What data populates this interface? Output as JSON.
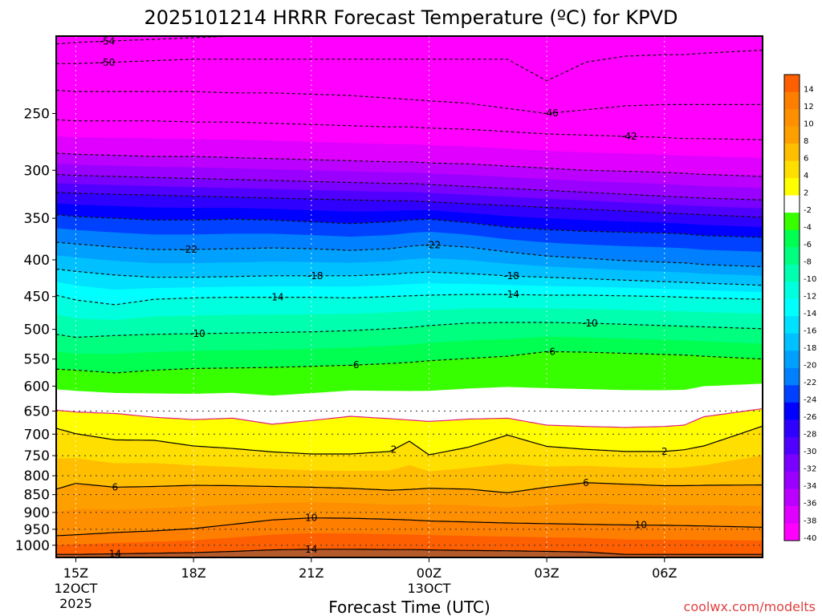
{
  "chart_data": {
    "type": "heatmap",
    "title": "2025101214 HRRR Forecast Temperature (ºC) for KPVD",
    "xlabel": "Forecast Time (UTC)",
    "ylabel": "",
    "credit": "coolwx.com/modelts",
    "y_scale": "log-pressure",
    "ylim": [
      1040,
      195
    ],
    "xlim": [
      14.5,
      32.5
    ],
    "x_ticks": [
      {
        "x": 15,
        "lines": [
          "15Z",
          "12OCT",
          "2025"
        ]
      },
      {
        "x": 18,
        "lines": [
          "18Z"
        ]
      },
      {
        "x": 21,
        "lines": [
          "21Z"
        ]
      },
      {
        "x": 24,
        "lines": [
          "00Z",
          "13OCT"
        ]
      },
      {
        "x": 27,
        "lines": [
          "03Z"
        ]
      },
      {
        "x": 30,
        "lines": [
          "06Z"
        ]
      }
    ],
    "y_ticks": [
      {
        "p": 250,
        "label": "250"
      },
      {
        "p": 300,
        "label": "300"
      },
      {
        "p": 350,
        "label": "350"
      },
      {
        "p": 400,
        "label": "400"
      },
      {
        "p": 450,
        "label": "450"
      },
      {
        "p": 500,
        "label": "500"
      },
      {
        "p": 550,
        "label": "550"
      },
      {
        "p": 600,
        "label": "600"
      },
      {
        "p": 650,
        "label": "650"
      },
      {
        "p": 700,
        "label": "700"
      },
      {
        "p": 750,
        "label": "750"
      },
      {
        "p": 800,
        "label": "800"
      },
      {
        "p": 850,
        "label": "850"
      },
      {
        "p": 900,
        "label": "900"
      },
      {
        "p": 950,
        "label": "950"
      },
      {
        "p": 1000,
        "label": "1000"
      }
    ],
    "grid": {
      "vertical": true,
      "horizontal_dotted": true
    },
    "x_samples": [
      14.5,
      15,
      16,
      17,
      18,
      19,
      20,
      21,
      22,
      23,
      23.5,
      24,
      25,
      26,
      27,
      28,
      29,
      30,
      30.5,
      31,
      32.5
    ],
    "isotherms": [
      {
        "temp": -54,
        "style": "dashed",
        "labels": [
          {
            "text": "-54",
            "x": 15.8
          }
        ],
        "p": [
          200,
          199,
          198,
          197,
          196,
          195,
          194,
          193,
          193,
          193,
          193,
          193,
          193,
          193,
          193,
          193,
          193,
          193,
          193,
          193,
          193
        ]
      },
      {
        "temp": -50,
        "style": "dashed",
        "labels": [
          {
            "text": "-50",
            "x": 15.8
          }
        ],
        "p": [
          213,
          213,
          212,
          211,
          210,
          210,
          210,
          210,
          210,
          210,
          210,
          210,
          210,
          210,
          225,
          212,
          208,
          207,
          207,
          206,
          204
        ]
      },
      {
        "temp": -46,
        "style": "dashed",
        "labels": [
          {
            "text": "-46",
            "x": 27.1
          }
        ],
        "p": [
          232,
          233,
          233,
          233,
          233,
          234,
          234,
          235,
          236,
          238,
          239,
          240,
          242,
          246,
          250,
          247,
          244,
          243,
          243,
          243,
          243
        ]
      },
      {
        "temp": -42,
        "style": "dashed",
        "labels": [
          {
            "text": "-42",
            "x": 29.1
          }
        ],
        "p": [
          255,
          256,
          256,
          256,
          257,
          257,
          258,
          259,
          260,
          261,
          261,
          262,
          263,
          265,
          267,
          268,
          269,
          270,
          271,
          271,
          272
        ]
      },
      {
        "temp": -38,
        "style": "dashed",
        "labels": [],
        "p": [
          284,
          285,
          286,
          287,
          287,
          288,
          289,
          290,
          291,
          292,
          292,
          293,
          294,
          296,
          298,
          300,
          301,
          302,
          303,
          304,
          306
        ]
      },
      {
        "temp": -34,
        "style": "dashed",
        "labels": [],
        "p": [
          304,
          305,
          306,
          307,
          308,
          309,
          310,
          311,
          312,
          313,
          313,
          314,
          316,
          318,
          320,
          322,
          324,
          326,
          327,
          328,
          330
        ]
      },
      {
        "temp": -30,
        "style": "dashed",
        "labels": [],
        "p": [
          322,
          323,
          324,
          325,
          326,
          327,
          328,
          329,
          330,
          331,
          331,
          332,
          334,
          336,
          338,
          340,
          342,
          344,
          345,
          346,
          349
        ]
      },
      {
        "temp": -26,
        "style": "dashed",
        "labels": [],
        "p": [
          346,
          348,
          350,
          352,
          352,
          351,
          352,
          354,
          356,
          354,
          352,
          351,
          355,
          360,
          363,
          365,
          366,
          367,
          368,
          370,
          372
        ]
      },
      {
        "temp": -22,
        "style": "dashed",
        "labels": [
          {
            "text": "-22",
            "x": 17.9
          },
          {
            "text": "-22",
            "x": 24.1
          }
        ],
        "p": [
          378,
          380,
          384,
          387,
          387,
          386,
          385,
          386,
          388,
          386,
          383,
          381,
          384,
          390,
          395,
          398,
          401,
          403,
          404,
          406,
          409
        ]
      },
      {
        "temp": -18,
        "style": "dashed",
        "labels": [
          {
            "text": "-18",
            "x": 21.1
          },
          {
            "text": "-18",
            "x": 26.1
          }
        ],
        "p": [
          412,
          415,
          420,
          423,
          423,
          422,
          421,
          421,
          421,
          419,
          417,
          416,
          418,
          421,
          423,
          425,
          427,
          429,
          430,
          431,
          434
        ]
      },
      {
        "temp": -14,
        "style": "dashed",
        "labels": [
          {
            "text": "-14",
            "x": 20.1
          },
          {
            "text": "-14",
            "x": 26.1
          }
        ],
        "p": [
          448,
          455,
          462,
          454,
          452,
          451,
          451,
          451,
          452,
          450,
          449,
          448,
          447,
          447,
          448,
          448,
          449,
          450,
          451,
          452,
          454
        ]
      },
      {
        "temp": -10,
        "style": "dashed",
        "labels": [
          {
            "text": "-10",
            "x": 18.1
          },
          {
            "text": "-10",
            "x": 28.1
          }
        ],
        "p": [
          508,
          513,
          510,
          508,
          507,
          506,
          505,
          504,
          502,
          499,
          497,
          494,
          490,
          489,
          489,
          490,
          492,
          494,
          495,
          496,
          499
        ]
      },
      {
        "temp": -6,
        "style": "dashed",
        "labels": [
          {
            "text": "-6",
            "x": 22.1
          },
          {
            "text": "-6",
            "x": 27.1
          }
        ],
        "p": [
          568,
          570,
          575,
          570,
          567,
          566,
          565,
          563,
          561,
          558,
          556,
          553,
          549,
          545,
          537,
          538,
          540,
          542,
          543,
          545,
          550
        ]
      },
      {
        "temp": -2,
        "style": "pink",
        "labels": [],
        "p": [
          648,
          652,
          655,
          663,
          668,
          665,
          678,
          670,
          661,
          666,
          669,
          672,
          667,
          665,
          680,
          683,
          685,
          683,
          680,
          662,
          645
        ]
      },
      {
        "temp": 2,
        "style": "solid",
        "labels": [
          {
            "text": "2",
            "x": 23.1
          },
          {
            "text": "2",
            "x": 30.0
          }
        ],
        "p": [
          687,
          699,
          713,
          714,
          727,
          733,
          741,
          746,
          746,
          740,
          716,
          748,
          730,
          702,
          728,
          735,
          740,
          740,
          736,
          727,
          682
        ]
      },
      {
        "temp": 6,
        "style": "solid",
        "labels": [
          {
            "text": "6",
            "x": 16.0
          },
          {
            "text": "6",
            "x": 28.0
          }
        ],
        "p": [
          835,
          820,
          830,
          828,
          825,
          826,
          828,
          830,
          833,
          838,
          836,
          833,
          835,
          845,
          830,
          818,
          822,
          826,
          826,
          825,
          824
        ]
      },
      {
        "temp": 10,
        "style": "solid",
        "labels": [
          {
            "text": "10",
            "x": 21.0
          },
          {
            "text": "10",
            "x": 29.4
          }
        ],
        "p": [
          970,
          967,
          960,
          955,
          948,
          935,
          922,
          916,
          917,
          920,
          922,
          925,
          928,
          931,
          933,
          935,
          937,
          938,
          939,
          940,
          944
        ]
      },
      {
        "temp": 14,
        "style": "solid",
        "labels": [
          {
            "text": "14",
            "x": 16.0
          },
          {
            "text": "14",
            "x": 21.0
          }
        ],
        "p": [
          1030,
          1030,
          1028,
          1026,
          1024,
          1020,
          1015,
          1013,
          1013,
          1014,
          1014,
          1015,
          1017,
          1018,
          1020,
          1022,
          1030,
          1030,
          1030,
          1030,
          1030
        ]
      }
    ],
    "colorbar": {
      "labels": [
        "14",
        "12",
        "10",
        "8",
        "6",
        "4",
        "2",
        "-2",
        "-4",
        "-6",
        "-8",
        "-10",
        "-12",
        "-14",
        "-16",
        "-18",
        "-20",
        "-22",
        "-24",
        "-26",
        "-28",
        "-30",
        "-32",
        "-34",
        "-36",
        "-38",
        "-40"
      ],
      "colors": [
        "#fe5f00",
        "#fe7f00",
        "#fe8f00",
        "#fe9f00",
        "#ffbe00",
        "#ffdf00",
        "#ffff00",
        "#ffffff",
        "#38ff00",
        "#00ff50",
        "#00ff7f",
        "#00ffaf",
        "#00ffdf",
        "#00ffff",
        "#00e0ff",
        "#00c0ff",
        "#00a0ff",
        "#0080ff",
        "#0040ff",
        "#0000ff",
        "#3000ff",
        "#5000ff",
        "#7a00ff",
        "#9a00ff",
        "#bb00ff",
        "#df00ff",
        "#ff00ff"
      ]
    },
    "surface_color": "#b55a2a"
  }
}
